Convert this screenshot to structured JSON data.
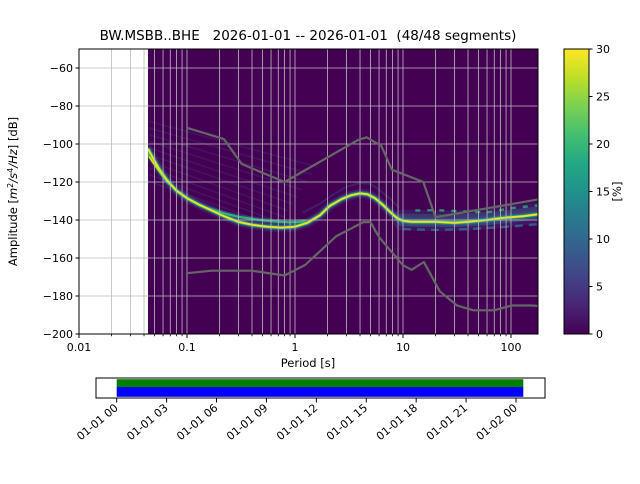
{
  "title": "BW.MSBB..BHE   2026-01-01 -- 2026-01-01  (48/48 segments)",
  "chart_data": {
    "type": "heatmap",
    "title": "BW.MSBB..BHE   2026-01-01 -- 2026-01-01  (48/48 segments)",
    "xlabel": "Period [s]",
    "ylabel": "Amplitude [m²/s⁴/Hz] [dB]",
    "ylabel_parts": [
      {
        "t": "Amplitude [",
        "i": 0
      },
      {
        "t": "m",
        "i": 1
      },
      {
        "t": "2",
        "i": 0,
        "sup": 1
      },
      {
        "t": "/s",
        "i": 1
      },
      {
        "t": "4",
        "i": 0,
        "sup": 1
      },
      {
        "t": "/Hz",
        "i": 1
      },
      {
        "t": "] [dB]",
        "i": 0
      }
    ],
    "xscale": "log",
    "xlim": [
      0.01,
      177.8
    ],
    "ylim": [
      -200,
      -50
    ],
    "grid": true,
    "x_ticks": [
      {
        "label": "0.01",
        "period": 0.01
      },
      {
        "label": "0.1",
        "period": 0.1
      },
      {
        "label": "1",
        "period": 1
      },
      {
        "label": "10",
        "period": 10
      },
      {
        "label": "100",
        "period": 100
      }
    ],
    "y_ticks": [
      {
        "label": "−60",
        "db": -60
      },
      {
        "label": "−80",
        "db": -80
      },
      {
        "label": "−100",
        "db": -100
      },
      {
        "label": "−120",
        "db": -120
      },
      {
        "label": "−140",
        "db": -140
      },
      {
        "label": "−160",
        "db": -160
      },
      {
        "label": "−180",
        "db": -180
      },
      {
        "label": "−200",
        "db": -200
      }
    ],
    "colorbar": {
      "label": "[%]",
      "min": 0,
      "max": 30,
      "ticks": [
        {
          "label": "0",
          "value": 0
        },
        {
          "label": "5",
          "value": 5
        },
        {
          "label": "10",
          "value": 10
        },
        {
          "label": "15",
          "value": 15
        },
        {
          "label": "20",
          "value": 20
        },
        {
          "label": "25",
          "value": 25
        },
        {
          "label": "30",
          "value": 30
        }
      ]
    },
    "data_period_start": 0.044,
    "ppsd_mode_curve": {
      "periods": [
        0.044,
        0.048,
        0.055,
        0.065,
        0.08,
        0.1,
        0.13,
        0.17,
        0.22,
        0.3,
        0.4,
        0.55,
        0.75,
        1.0,
        1.3,
        1.7,
        2.1,
        2.7,
        3.3,
        4.0,
        4.7,
        5.5,
        6.5,
        7.5,
        8.8,
        10,
        12,
        15,
        20,
        30,
        40,
        60,
        80,
        100,
        130,
        177
      ],
      "db": [
        -103,
        -107,
        -113,
        -119,
        -124.5,
        -128.5,
        -132,
        -135,
        -138,
        -141,
        -142.5,
        -143.5,
        -144,
        -143.5,
        -141.5,
        -137.5,
        -132.5,
        -129,
        -127,
        -126,
        -126.5,
        -128.5,
        -132,
        -135.5,
        -139,
        -140.5,
        -141,
        -141,
        -141,
        -141.5,
        -141,
        -140,
        -139,
        -138.5,
        -138,
        -137
      ]
    },
    "noise_models": {
      "nhnm": {
        "periods": [
          0.1,
          0.22,
          0.32,
          0.8,
          3.8,
          4.6,
          6.3,
          7.9,
          15.4,
          20,
          177.8
        ],
        "db": [
          -91.5,
          -97.4,
          -110.5,
          -120.0,
          -98.0,
          -96.5,
          -101.0,
          -113.5,
          -120.0,
          -138.5,
          -129.2
        ]
      },
      "nlnm": {
        "periods": [
          0.1,
          0.17,
          0.4,
          0.8,
          1.24,
          2.4,
          4.3,
          5.0,
          6.0,
          10,
          12,
          15.6,
          21.9,
          31.6,
          45,
          70,
          101,
          154,
          177.8
        ],
        "db": [
          -168.0,
          -166.7,
          -166.7,
          -169.2,
          -163.7,
          -148.6,
          -141.1,
          -141.1,
          -149.0,
          -163.8,
          -166.2,
          -162.1,
          -177.5,
          -185.0,
          -187.5,
          -187.5,
          -185.0,
          -185.0,
          -185.2
        ]
      }
    }
  },
  "timeline": {
    "tick_labels": [
      "01-01 00",
      "01-01 03",
      "01-01 06",
      "01-01 09",
      "01-01 12",
      "01-01 15",
      "01-01 18",
      "01-01 21",
      "01-02 00"
    ],
    "coverage_color": "#0000ff",
    "top_strip_color": "#008000"
  },
  "render": {
    "background": "#440154",
    "grid_color": "#bcbcbc",
    "noise_model_color": "#666666",
    "viridis": [
      [
        0,
        "#440154"
      ],
      [
        0.1,
        "#482475"
      ],
      [
        0.2,
        "#414487"
      ],
      [
        0.3,
        "#355f8d"
      ],
      [
        0.4,
        "#2a788e"
      ],
      [
        0.5,
        "#21918c"
      ],
      [
        0.6,
        "#22a884"
      ],
      [
        0.7,
        "#44bf70"
      ],
      [
        0.8,
        "#7ad151"
      ],
      [
        0.9,
        "#bddf26"
      ],
      [
        1,
        "#fde725"
      ]
    ],
    "fan": {
      "color": "#46327e",
      "width": 1.5,
      "opacity": 0.4,
      "starts": [
        [
          0.044,
          -88
        ],
        [
          0.044,
          -91.5
        ],
        [
          0.044,
          -95
        ],
        [
          0.044,
          -98.5
        ],
        [
          0.044,
          -102
        ],
        [
          0.044,
          -105.5
        ],
        [
          0.044,
          -109
        ],
        [
          0.044,
          -112.5
        ],
        [
          0.044,
          -116
        ],
        [
          0.044,
          -119.5
        ]
      ],
      "ends": [
        [
          1.6,
          -112
        ],
        [
          1.45,
          -116
        ],
        [
          1.3,
          -120
        ],
        [
          1.15,
          -124
        ],
        [
          1.05,
          -128
        ],
        [
          0.95,
          -131.5
        ],
        [
          0.85,
          -135
        ],
        [
          0.8,
          -138.5
        ],
        [
          0.75,
          -141.5
        ],
        [
          0.72,
          -144
        ]
      ]
    },
    "curves": {
      "trough2": [
        [
          0.16,
          -134
        ],
        [
          0.22,
          -136.5
        ],
        [
          0.3,
          -138.3
        ],
        [
          0.45,
          -139.8
        ],
        [
          0.65,
          -140.8
        ],
        [
          0.9,
          -141.2
        ],
        [
          1.25,
          -140.8
        ]
      ],
      "spreadCenter": [
        [
          10,
          -140
        ],
        [
          15,
          -140.2
        ],
        [
          25,
          -140.5
        ],
        [
          40,
          -140
        ],
        [
          70,
          -139
        ],
        [
          110,
          -137.8
        ],
        [
          177,
          -136.2
        ]
      ],
      "upperDash": [
        [
          13,
          -135
        ],
        [
          20,
          -134.8
        ],
        [
          35,
          -135.5
        ],
        [
          60,
          -136
        ],
        [
          100,
          -133.8
        ],
        [
          177,
          -132.3
        ]
      ],
      "lowerDash": [
        [
          10,
          -144.8
        ],
        [
          20,
          -145.2
        ],
        [
          40,
          -144.8
        ],
        [
          80,
          -143.8
        ],
        [
          177,
          -142.2
        ]
      ],
      "riseEcho": [
        [
          1.2,
          -136
        ],
        [
          1.7,
          -131.5
        ],
        [
          2.2,
          -127
        ],
        [
          3.0,
          -122.5
        ],
        [
          4.0,
          -120.5
        ],
        [
          5.0,
          -121
        ],
        [
          6.0,
          -124
        ],
        [
          7.5,
          -128.5
        ],
        [
          9.0,
          -133
        ]
      ],
      "leftCluster": [
        [
          0.044,
          -105
        ],
        [
          0.05,
          -110
        ],
        [
          0.058,
          -115.5
        ],
        [
          0.068,
          -120.5
        ]
      ],
      "leftClusterTip": [
        [
          0.045,
          -107
        ],
        [
          0.052,
          -112
        ],
        [
          0.06,
          -116.5
        ]
      ]
    },
    "layers": [
      {
        "curve": "riseEcho",
        "color": "#3b528b",
        "width": 2,
        "opacity": 0.38
      },
      {
        "curve": "mode",
        "color": "#46327e",
        "width": 9.5,
        "opacity": 0.42
      },
      {
        "curve": "spreadCenter",
        "color": "#3b528b",
        "width": 21,
        "opacity": 0.25
      },
      {
        "curve": "spreadCenter",
        "color": "#2a788e",
        "width": 13,
        "opacity": 0.35
      },
      {
        "curve": "mode",
        "color": "#2a788e",
        "width": 5.5,
        "opacity": 0.7
      },
      {
        "curve": "trough2",
        "color": "#2a788e",
        "width": 5,
        "opacity": 0.5
      },
      {
        "curve": "mode",
        "color": "#3fbc73",
        "width": 3,
        "opacity": 0.92
      },
      {
        "curve": "trough2",
        "color": "#35b779",
        "width": 2.2,
        "opacity": 0.95
      },
      {
        "curve": "upperDash",
        "color": "#2ab07f",
        "width": 2.4,
        "opacity": 0.8,
        "dash": "5 7"
      },
      {
        "curve": "lowerDash",
        "color": "#31688e",
        "width": 2.4,
        "opacity": 0.85,
        "dash": "8 6"
      },
      {
        "curve": "leftCluster",
        "color": "#35b779",
        "width": 4,
        "opacity": 0.9
      },
      {
        "curve": "mode",
        "color": "#f0e51d",
        "width": 1.8,
        "opacity": 1
      },
      {
        "curve": "leftClusterTip",
        "color": "#d8e219",
        "width": 2,
        "opacity": 0.95
      }
    ]
  }
}
